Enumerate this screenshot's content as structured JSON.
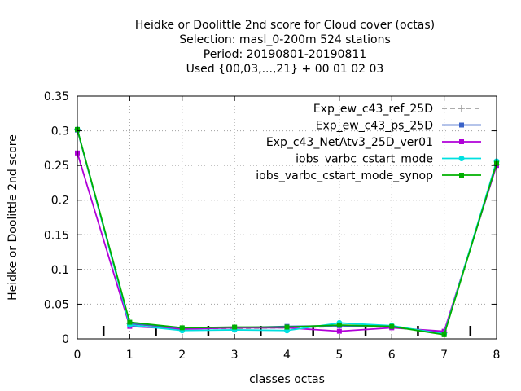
{
  "chart_data": {
    "type": "line",
    "title_lines": [
      "Heidke or Doolittle 2nd score  for Cloud cover (octas)",
      "Selection: masl_0-200m    524 stations",
      "Period: 20190801-20190811",
      "Used {00,03,...,21} + 00 01 02 03"
    ],
    "xlabel": "classes octas",
    "ylabel": "Heidke or Doolittle 2nd score",
    "xlim": [
      0,
      8
    ],
    "ylim": [
      0,
      0.35
    ],
    "x_ticks": [
      "0",
      "1",
      "2",
      "3",
      "4",
      "5",
      "6",
      "7",
      "8"
    ],
    "y_ticks": [
      "0",
      "0.05",
      "0.1",
      "0.15",
      "0.2",
      "0.25",
      "0.3",
      "0.35"
    ],
    "grid": true,
    "legend_position": "top-right",
    "x": [
      0,
      1,
      2,
      3,
      4,
      5,
      6,
      7,
      8
    ],
    "series": [
      {
        "name": "Exp_ew_c43_ref_25D",
        "color": "#a0a0a0",
        "dashed": true,
        "marker": "plus",
        "values": [
          0.302,
          0.022,
          0.015,
          0.015,
          0.016,
          0.018,
          0.017,
          0.009,
          0.251
        ]
      },
      {
        "name": "Exp_ew_c43_ps_25D",
        "color": "#3a62c8",
        "dashed": false,
        "marker": "square",
        "values": [
          0.301,
          0.022,
          0.015,
          0.016,
          0.018,
          0.019,
          0.017,
          0.009,
          0.252
        ]
      },
      {
        "name": "Exp_c43_NetAtv3_25D_ver01",
        "color": "#b000d8",
        "dashed": false,
        "marker": "square",
        "values": [
          0.268,
          0.018,
          0.014,
          0.016,
          0.016,
          0.011,
          0.016,
          0.011,
          0.25
        ]
      },
      {
        "name": "iobs_varbc_cstart_mode",
        "color": "#00e0e0",
        "dashed": false,
        "marker": "circle",
        "values": [
          0.302,
          0.02,
          0.012,
          0.013,
          0.012,
          0.023,
          0.019,
          0.007,
          0.256
        ]
      },
      {
        "name": "iobs_varbc_cstart_mode_synop",
        "color": "#00b000",
        "dashed": false,
        "marker": "square",
        "values": [
          0.302,
          0.024,
          0.016,
          0.017,
          0.017,
          0.02,
          0.018,
          0.006,
          0.253
        ]
      }
    ],
    "bottom_markers_x": [
      0.5,
      1.5,
      2.5,
      3.5,
      4.5,
      5.5,
      6.5,
      7.5
    ]
  }
}
